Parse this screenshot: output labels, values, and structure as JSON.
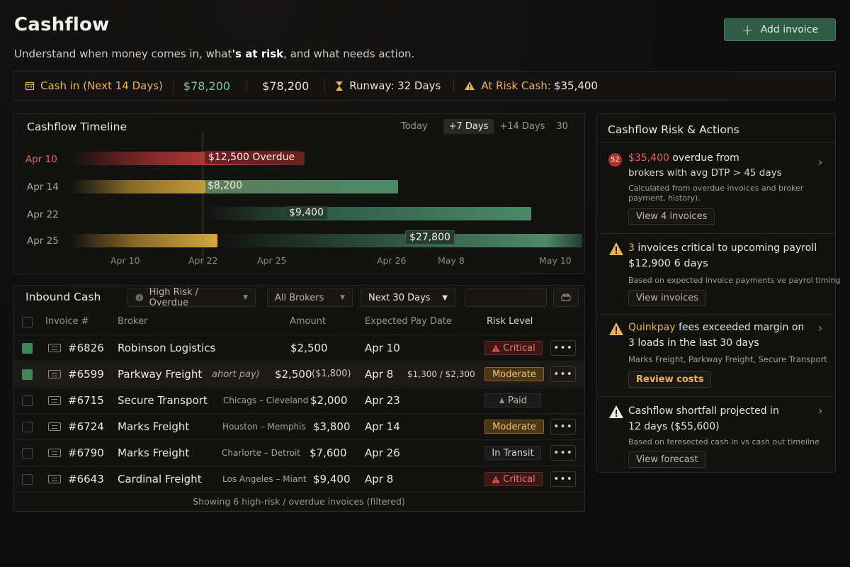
{
  "header": {
    "title": "Cashflow",
    "subtitle_pre": "Understand when money comes in, what",
    "subtitle_emph": "'s at risk",
    "subtitle_post": ", and what needs action.",
    "add_button": "Add invoice"
  },
  "summary": {
    "cash_in_label": "Cash in (Next 14 Days)",
    "cash_in_value": "$78,200",
    "total_value": "$78,200",
    "runway": "Runway: 32 Days",
    "at_risk_label": "At Risk Cash:",
    "at_risk_value": "$35,400"
  },
  "timeline": {
    "title": "Cashflow Timeline",
    "ranges": [
      "Today",
      "+7 Days",
      "+14 Days",
      "30"
    ],
    "selected_range": "+7 Days",
    "rows": [
      {
        "label": "Apr 10",
        "value": "$12,500",
        "note": "Overdue"
      },
      {
        "label": "Apr 14",
        "value": "$8,200"
      },
      {
        "label": "Apr 22",
        "value": "$9,400"
      },
      {
        "label": "Apr 25",
        "value": "$27,800"
      }
    ],
    "ticks": [
      "Apr 10",
      "Apr 22",
      "Apr 25",
      "Apr 26",
      "May 8",
      "May 10"
    ]
  },
  "inbound": {
    "title": "Inbound Cash",
    "filters": {
      "risk": "High Risk / Overdue",
      "brokers": "All Brokers",
      "period": "Next 30 Days"
    },
    "columns": [
      "Invoice #",
      "Broker",
      "Amount",
      "Expected Pay Date",
      "Risk Level"
    ],
    "rows": [
      {
        "invoice": "#6826",
        "broker": "Robinson Logistics",
        "route": "",
        "amount": "$2,500",
        "date": "Apr 10",
        "risk": "Critical",
        "checked": true
      },
      {
        "invoice": "#6599",
        "broker": "Parkway Freight",
        "route": "ahort pay)",
        "amount": "$2,500",
        "amount_extra": "($1,800)",
        "date": "Apr 8",
        "date_extra": "$1,300 / $2,300",
        "risk": "Moderate",
        "checked": true
      },
      {
        "invoice": "#6715",
        "broker": "Secure Transport",
        "route": "Chicags – Cleveland",
        "amount": "$2,000",
        "date": "Apr 23",
        "risk": "Paid",
        "checked": false
      },
      {
        "invoice": "#6724",
        "broker": "Marks Freight",
        "route": "Houston – Memphis",
        "amount": "$3,800",
        "date": "Apr 14",
        "risk": "Moderate",
        "checked": false
      },
      {
        "invoice": "#6790",
        "broker": "Marks Freight",
        "route": "Charlorte – Detroit",
        "amount": "$7,600",
        "date": "Apr 26",
        "risk": "In Transit",
        "checked": false
      },
      {
        "invoice": "#6643",
        "broker": "Cardinal Freight",
        "route": "Los Angeles – Miant",
        "amount": "$9,400",
        "date": "Apr 8",
        "risk": "Critical",
        "checked": false
      }
    ],
    "more_label": "•••",
    "footer": "Showing 6 high-risk / overdue invoices (filtered)"
  },
  "risk": {
    "title": "Cashflow Risk & Actions",
    "cards": [
      {
        "badge": "52",
        "amount": "$35,400",
        "line1_rest": "overdue from",
        "line2": "brokers with avg DTP > 45 days",
        "note": "Calculated from overdue invoices and broker payment, history).",
        "action": "View 4 invoices"
      },
      {
        "count": "3",
        "line1_rest": "invoices critical to upcoming payroll",
        "line2": "$12,900 6 days",
        "note": "Based on expected invoice payments ve payrol timing",
        "action": "View invoices"
      },
      {
        "highlight": "Quinkpay",
        "line1_rest": "fees exceeded margin on",
        "line2": "3 loads in the last 30 days",
        "note": "Marks Freight, Parkway Freight, Secure Transport",
        "action": "Review costs"
      },
      {
        "line1": "Cashflow shortfall projected in",
        "line2": "12 days ($55,600)",
        "note": "Based on feresected cash in vs cash out timeline",
        "action": "View forecast"
      }
    ]
  },
  "colors": {
    "accent": "#2f5a46",
    "critical": "#ec7a6e",
    "moderate": "#ebc277",
    "positive": "#7fc79a"
  }
}
